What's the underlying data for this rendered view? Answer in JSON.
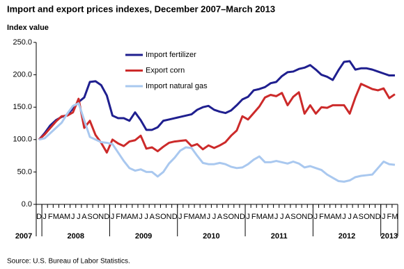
{
  "chart_data": {
    "type": "line",
    "title": "Import and export prices indexes, December 2007–March 2013",
    "y_label": "Index value",
    "source": "Source: U.S. Bureau of Labor Statistics.",
    "legend": "top-left",
    "categories": [
      "D",
      "J",
      "F",
      "M",
      "A",
      "M",
      "J",
      "J",
      "A",
      "S",
      "O",
      "N",
      "D",
      "J",
      "F",
      "M",
      "A",
      "M",
      "J",
      "J",
      "A",
      "S",
      "O",
      "N",
      "D",
      "J",
      "F",
      "M",
      "A",
      "M",
      "J",
      "J",
      "A",
      "S",
      "O",
      "N",
      "D",
      "J",
      "F",
      "M",
      "A",
      "M",
      "J",
      "J",
      "A",
      "S",
      "O",
      "N",
      "D",
      "J",
      "F",
      "M",
      "A",
      "M",
      "J",
      "J",
      "A",
      "S",
      "O",
      "N",
      "D",
      "J",
      "F",
      "M"
    ],
    "years": [
      "2007",
      "2008",
      "2009",
      "2010",
      "2011",
      "2012",
      "2013"
    ],
    "ylim": [
      0,
      250
    ],
    "yticks": [
      {
        "value": 0,
        "label": "0.0"
      },
      {
        "value": 50,
        "label": "50.0"
      },
      {
        "value": 100,
        "label": "100.0"
      },
      {
        "value": 150,
        "label": "150.0"
      },
      {
        "value": 200,
        "label": "200.0"
      },
      {
        "value": 250,
        "label": "250.0"
      }
    ],
    "series": [
      {
        "name": "Import fertilizer",
        "color": "#1f1f8f",
        "values": [
          100,
          110,
          122,
          130,
          135,
          138,
          148,
          158,
          165,
          189,
          190,
          184,
          168,
          137,
          133,
          133,
          129,
          142,
          130,
          115,
          115,
          119,
          129,
          131,
          133,
          135,
          137,
          139,
          146,
          150,
          152,
          146,
          143,
          141,
          145,
          153,
          162,
          166,
          176,
          178,
          181,
          187,
          189,
          198,
          204,
          205,
          209,
          211,
          215,
          208,
          200,
          197,
          192,
          207,
          220,
          221,
          208,
          210,
          210,
          208,
          205,
          202,
          199,
          199
        ]
      },
      {
        "name": "Export corn",
        "color": "#cc2a2a",
        "values": [
          100,
          108,
          118,
          128,
          136,
          137,
          142,
          163,
          118,
          129,
          107,
          95,
          80,
          100,
          94,
          90,
          97,
          99,
          106,
          86,
          88,
          82,
          89,
          95,
          97,
          98,
          99,
          90,
          93,
          85,
          91,
          87,
          91,
          96,
          106,
          114,
          136,
          131,
          141,
          151,
          165,
          169,
          167,
          172,
          153,
          166,
          173,
          140,
          153,
          140,
          150,
          149,
          153,
          153,
          153,
          140,
          165,
          186,
          182,
          178,
          176,
          179,
          164,
          170
        ]
      },
      {
        "name": "Import natural gas",
        "color": "#a9c8ef",
        "values": [
          100,
          102,
          110,
          118,
          126,
          140,
          152,
          156,
          130,
          104,
          100,
          96,
          95,
          93,
          80,
          67,
          56,
          52,
          54,
          50,
          50,
          43,
          50,
          63,
          72,
          83,
          88,
          87,
          75,
          64,
          62,
          62,
          64,
          62,
          58,
          56,
          57,
          62,
          69,
          74,
          65,
          65,
          67,
          65,
          63,
          66,
          63,
          57,
          59,
          56,
          53,
          46,
          41,
          36,
          35,
          37,
          42,
          44,
          45,
          46,
          56,
          66,
          62,
          61
        ]
      }
    ]
  }
}
